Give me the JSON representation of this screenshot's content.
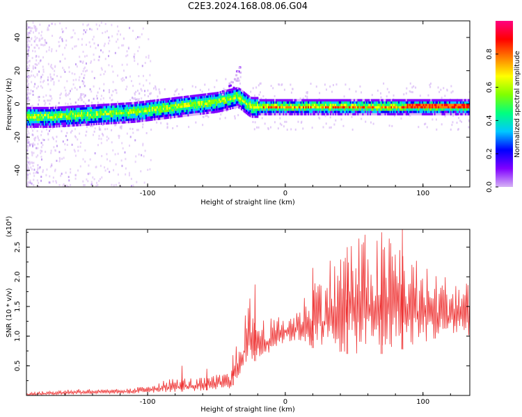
{
  "title": "C2E3.2024.168.08.06.G04",
  "chart_data": [
    {
      "type": "heatmap",
      "xlabel": "Height of straight line (km)",
      "ylabel": "Frequency (Hz)",
      "xlim": [
        -188,
        134
      ],
      "ylim": [
        -50,
        50
      ],
      "xticks": [
        -100,
        0,
        100
      ],
      "xtick_labels": [
        "-100",
        "0",
        "100"
      ],
      "yticks": [
        -40,
        -20,
        0,
        20,
        40
      ],
      "ytick_labels": [
        "-40",
        "-20",
        "0",
        "20",
        "40"
      ],
      "colorbar": {
        "label": "Normalized spectral amplitude",
        "range": [
          0,
          1
        ],
        "ticks": [
          0.0,
          0.2,
          0.4,
          0.6,
          0.8
        ],
        "tick_labels": [
          "0.0",
          "0.2",
          "0.4",
          "0.6",
          "0.8"
        ],
        "colormap": [
          "#d6b3f5",
          "#8000ff",
          "#0000ff",
          "#00c8ff",
          "#00ff80",
          "#80ff00",
          "#ffff00",
          "#ff8000",
          "#ff0000",
          "#ff0080"
        ]
      },
      "ridge": {
        "x": [
          -188,
          -170,
          -150,
          -130,
          -110,
          -100,
          -90,
          -80,
          -70,
          -60,
          -50,
          -40,
          -35,
          -33,
          -30,
          -27,
          -25,
          -20,
          -10,
          0,
          20,
          40,
          60,
          80,
          90,
          100,
          120,
          134
        ],
        "y": [
          -7,
          -7,
          -6,
          -5,
          -4,
          -3,
          -2,
          -1,
          0,
          1,
          2,
          4,
          5,
          4,
          2,
          0,
          -1,
          -1,
          -1,
          -1,
          -1,
          -1,
          -1,
          -1,
          -1,
          -1,
          -1,
          -1
        ]
      },
      "spike": {
        "x": [
          -45,
          -40,
          -36,
          -34
        ],
        "y": [
          8,
          12,
          16,
          21
        ]
      }
    },
    {
      "type": "line",
      "xlabel": "Height of straight line (km)",
      "ylabel": "SNR (10 * v/v)",
      "y_multiplier": "(x10⁴)",
      "xlim": [
        -188,
        134
      ],
      "ylim": [
        0,
        2.8
      ],
      "xticks": [
        -100,
        0,
        100
      ],
      "xtick_labels": [
        "-100",
        "0",
        "100"
      ],
      "yticks": [
        0.5,
        1.0,
        1.5,
        2.0,
        2.5
      ],
      "ytick_labels": [
        "0.5",
        "1.0",
        "1.5",
        "2.0",
        "2.5"
      ],
      "color": "#ee3333",
      "envelope": {
        "x": [
          -188,
          -170,
          -150,
          -130,
          -110,
          -100,
          -90,
          -80,
          -70,
          -60,
          -50,
          -40,
          -35,
          -30,
          -25,
          -20,
          -10,
          0,
          10,
          20,
          30,
          40,
          50,
          60,
          70,
          80,
          90,
          100,
          110,
          120,
          134
        ],
        "y_low": [
          0.0,
          0.01,
          0.02,
          0.03,
          0.03,
          0.04,
          0.05,
          0.06,
          0.07,
          0.08,
          0.1,
          0.12,
          0.25,
          0.4,
          0.55,
          0.6,
          0.75,
          0.9,
          0.9,
          0.8,
          0.7,
          0.7,
          0.7,
          0.7,
          0.7,
          0.75,
          0.8,
          0.9,
          0.9,
          1.0,
          1.0
        ],
        "y_high": [
          0.05,
          0.08,
          0.12,
          0.1,
          0.12,
          0.2,
          0.25,
          0.3,
          0.3,
          0.3,
          0.35,
          0.4,
          0.9,
          1.3,
          1.75,
          1.3,
          1.3,
          1.35,
          1.5,
          2.0,
          2.3,
          2.5,
          2.7,
          2.75,
          2.7,
          2.8,
          2.5,
          2.2,
          2.1,
          2.0,
          2.0
        ]
      },
      "peaks": [
        {
          "x": -75,
          "y": 0.5
        },
        {
          "x": -57,
          "y": 0.45
        },
        {
          "x": -38,
          "y": 0.68
        },
        {
          "x": -22,
          "y": 1.87
        },
        {
          "x": 20,
          "y": 2.15
        },
        {
          "x": 45,
          "y": 2.5
        },
        {
          "x": 70,
          "y": 2.75
        },
        {
          "x": 85,
          "y": 2.8
        }
      ]
    }
  ]
}
